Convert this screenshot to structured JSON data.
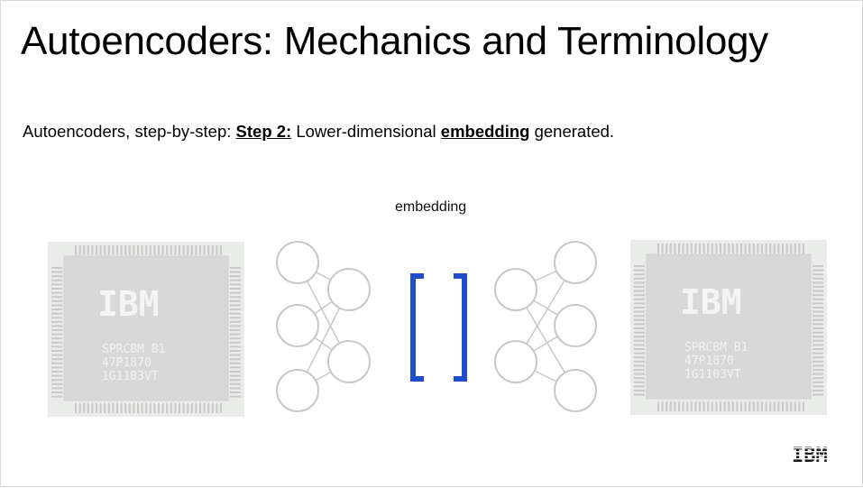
{
  "slide": {
    "title": "Autoencoders: Mechanics and Terminology",
    "subtitle": {
      "prefix": "Autoencoders, step-by-step: ",
      "step": "Step 2:",
      "middle": " Lower-dimensional ",
      "term": "embedding",
      "suffix": " generated."
    },
    "embedding_label": "embedding"
  },
  "chip": {
    "brand": "IBM",
    "line1": "SPRCBM B1",
    "line2": "47P1870",
    "line3": "1G1103VT"
  },
  "logo": {
    "text": "IBM"
  },
  "colors": {
    "bracket": "#1f4fcc",
    "node_stroke": "#c8c8c8",
    "edge_stroke": "#c8c8c8",
    "chip_body": "#d6d6d6",
    "chip_text": "#f2f2f2"
  }
}
